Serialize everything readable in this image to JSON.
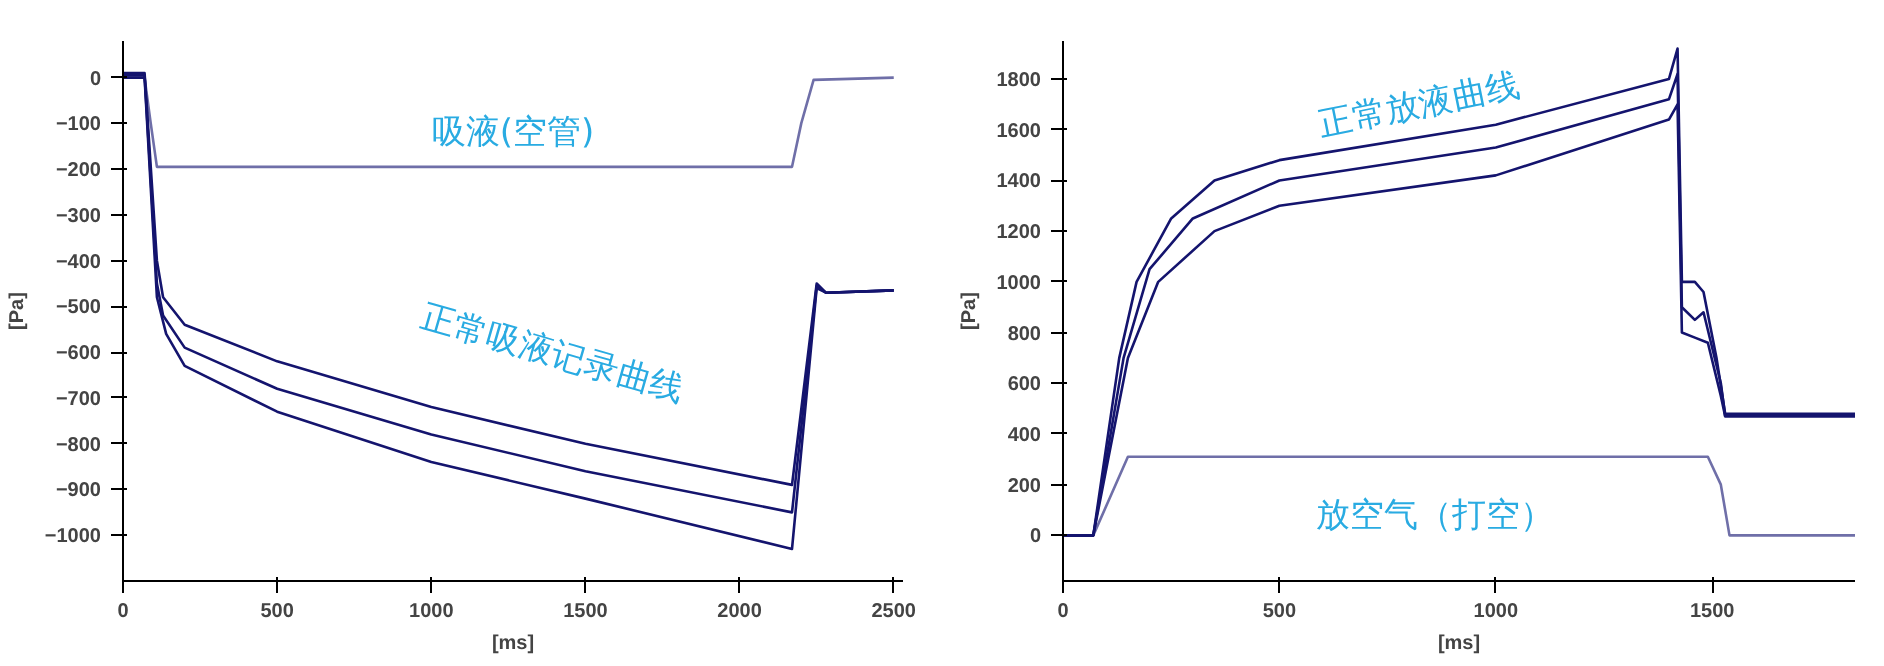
{
  "chart_data": [
    {
      "type": "line",
      "xlabel": "[ms]",
      "ylabel": "[Pa]",
      "xlim": [
        0,
        2530
      ],
      "ylim": [
        -1100,
        80
      ],
      "xticks": [
        {
          "value": 0,
          "label": "0"
        },
        500,
        1000,
        1500,
        2000,
        2500
      ],
      "yticks": [
        0,
        -100,
        -200,
        -300,
        -400,
        -500,
        -600,
        -700,
        -800,
        -900,
        -1000
      ],
      "grid": false,
      "annotations": [
        "吸液(空管)",
        "正常吸液记录曲线"
      ],
      "series": [
        {
          "color": "#6f6fa8",
          "x": [
            0,
            70,
            90,
            110,
            2170,
            2200,
            2240,
            2500
          ],
          "values": [
            0,
            0,
            -100,
            -195,
            -195,
            -100,
            -5,
            0
          ]
        },
        {
          "color": "#14146e",
          "x": [
            0,
            70,
            110,
            130,
            200,
            500,
            1000,
            1500,
            2170,
            2250,
            2280,
            2500
          ],
          "values": [
            10,
            10,
            -400,
            -480,
            -540,
            -620,
            -720,
            -800,
            -890,
            -450,
            -470,
            -465
          ]
        },
        {
          "color": "#14146e",
          "x": [
            0,
            70,
            110,
            130,
            200,
            500,
            1000,
            1500,
            2170,
            2250,
            2280,
            2500
          ],
          "values": [
            5,
            5,
            -450,
            -520,
            -590,
            -680,
            -780,
            -860,
            -950,
            -455,
            -470,
            -465
          ]
        },
        {
          "color": "#14146e",
          "x": [
            0,
            70,
            110,
            140,
            200,
            500,
            1000,
            1500,
            2170,
            2250,
            2280,
            2500
          ],
          "values": [
            0,
            0,
            -480,
            -560,
            -630,
            -730,
            -840,
            -920,
            -1030,
            -460,
            -470,
            -465
          ]
        }
      ]
    },
    {
      "type": "line",
      "xlabel": "[ms]",
      "ylabel": "[Pa]",
      "xlim": [
        0,
        1830
      ],
      "ylim": [
        -180,
        1950
      ],
      "xticks": [
        {
          "value": 0,
          "label": "0"
        },
        500,
        1000,
        1500
      ],
      "yticks": [
        0,
        200,
        400,
        600,
        800,
        1000,
        1200,
        1400,
        1600,
        1800
      ],
      "grid": false,
      "annotations": [
        "正常放液曲线",
        "放空气（打空）"
      ],
      "series": [
        {
          "color": "#6f6fa8",
          "x": [
            0,
            70,
            150,
            1490,
            1520,
            1540,
            1830
          ],
          "values": [
            0,
            0,
            310,
            310,
            200,
            0,
            0
          ]
        },
        {
          "color": "#14146e",
          "x": [
            0,
            70,
            130,
            170,
            250,
            350,
            500,
            1000,
            1400,
            1420,
            1430,
            1460,
            1480,
            1510,
            1530,
            1830
          ],
          "values": [
            0,
            0,
            700,
            1000,
            1250,
            1400,
            1480,
            1620,
            1800,
            1920,
            1000,
            1000,
            960,
            700,
            480,
            480
          ]
        },
        {
          "color": "#14146e",
          "x": [
            0,
            70,
            140,
            200,
            300,
            500,
            1000,
            1400,
            1420,
            1430,
            1460,
            1480,
            1520,
            1530,
            1830
          ],
          "values": [
            0,
            0,
            700,
            1050,
            1250,
            1400,
            1530,
            1720,
            1820,
            900,
            850,
            880,
            600,
            470,
            470
          ]
        },
        {
          "color": "#14146e",
          "x": [
            0,
            70,
            150,
            220,
            350,
            500,
            1000,
            1400,
            1420,
            1430,
            1460,
            1490,
            1520,
            1530,
            1830
          ],
          "values": [
            0,
            0,
            700,
            1000,
            1200,
            1300,
            1420,
            1640,
            1700,
            800,
            780,
            760,
            550,
            470,
            470
          ]
        }
      ]
    }
  ]
}
